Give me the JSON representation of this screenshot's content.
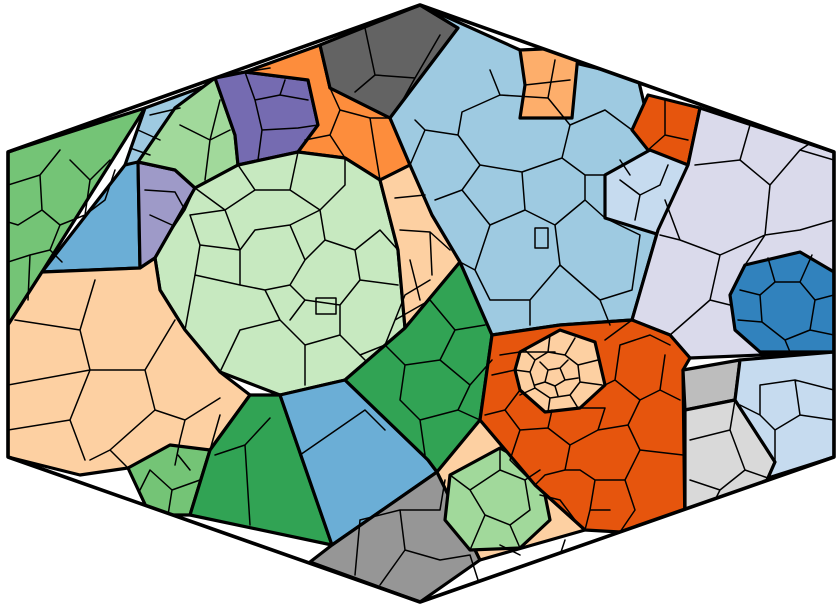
{
  "diagram": {
    "type": "voronoi-treemap",
    "boundary_shape": "hexagon",
    "palette": {
      "blue": "#3182bd",
      "blue_mid": "#6baed6",
      "blue_light": "#9ecae1",
      "blue_pale": "#c6dbef",
      "orange": "#e6550d",
      "orange_mid": "#fd8d3c",
      "orange_light": "#fdae6b",
      "orange_pale": "#fdd0a2",
      "green": "#31a354",
      "green_mid": "#74c476",
      "green_light": "#a1d99b",
      "green_pale": "#c7e9c0",
      "purple": "#756bb1",
      "purple_mid": "#9e9ac8",
      "purple_pale": "#dadaeb",
      "gray_dark": "#636363",
      "gray": "#969696",
      "gray_light": "#bdbdbd",
      "gray_pale": "#d9d9d9"
    },
    "regions": [
      {
        "name": "region-green-mid-left",
        "color": "green_mid"
      },
      {
        "name": "region-blue-light-upper-left",
        "color": "blue_light"
      },
      {
        "name": "region-blue-mid-left",
        "color": "blue_mid"
      },
      {
        "name": "region-purple-mid-left",
        "color": "purple_mid"
      },
      {
        "name": "region-green-light-top",
        "color": "green_light"
      },
      {
        "name": "region-purple-top",
        "color": "purple"
      },
      {
        "name": "region-orange-mid-top",
        "color": "orange_mid"
      },
      {
        "name": "region-gray-dark-top",
        "color": "gray_dark"
      },
      {
        "name": "region-green-pale-center",
        "color": "green_pale"
      },
      {
        "name": "region-orange-pale-left",
        "color": "orange_pale"
      },
      {
        "name": "region-orange-pale-center",
        "color": "orange_pale"
      },
      {
        "name": "region-green-mid-bottom-left",
        "color": "green_mid"
      },
      {
        "name": "region-green-bottom-left",
        "color": "green"
      },
      {
        "name": "region-blue-mid-bottom",
        "color": "blue_mid"
      },
      {
        "name": "region-green-center",
        "color": "green"
      },
      {
        "name": "region-gray-bottom",
        "color": "gray"
      },
      {
        "name": "region-orange-pale-bottom",
        "color": "orange_pale"
      },
      {
        "name": "region-green-light-bottom",
        "color": "green_light"
      },
      {
        "name": "region-blue-light-top-right",
        "color": "blue_light"
      },
      {
        "name": "region-orange-light-top-right",
        "color": "orange_light"
      },
      {
        "name": "region-orange-top-right",
        "color": "orange"
      },
      {
        "name": "region-blue-pale-right",
        "color": "blue_pale"
      },
      {
        "name": "region-purple-pale-right",
        "color": "purple_pale"
      },
      {
        "name": "region-blue-right",
        "color": "blue"
      },
      {
        "name": "region-orange-lower-right",
        "color": "orange"
      },
      {
        "name": "region-orange-pale-nested-circle",
        "color": "orange_pale"
      },
      {
        "name": "region-gray-light-lower-right",
        "color": "gray_light"
      },
      {
        "name": "region-gray-pale-lower-right",
        "color": "gray_pale"
      },
      {
        "name": "region-blue-pale-lower-right",
        "color": "blue_pale"
      }
    ]
  }
}
